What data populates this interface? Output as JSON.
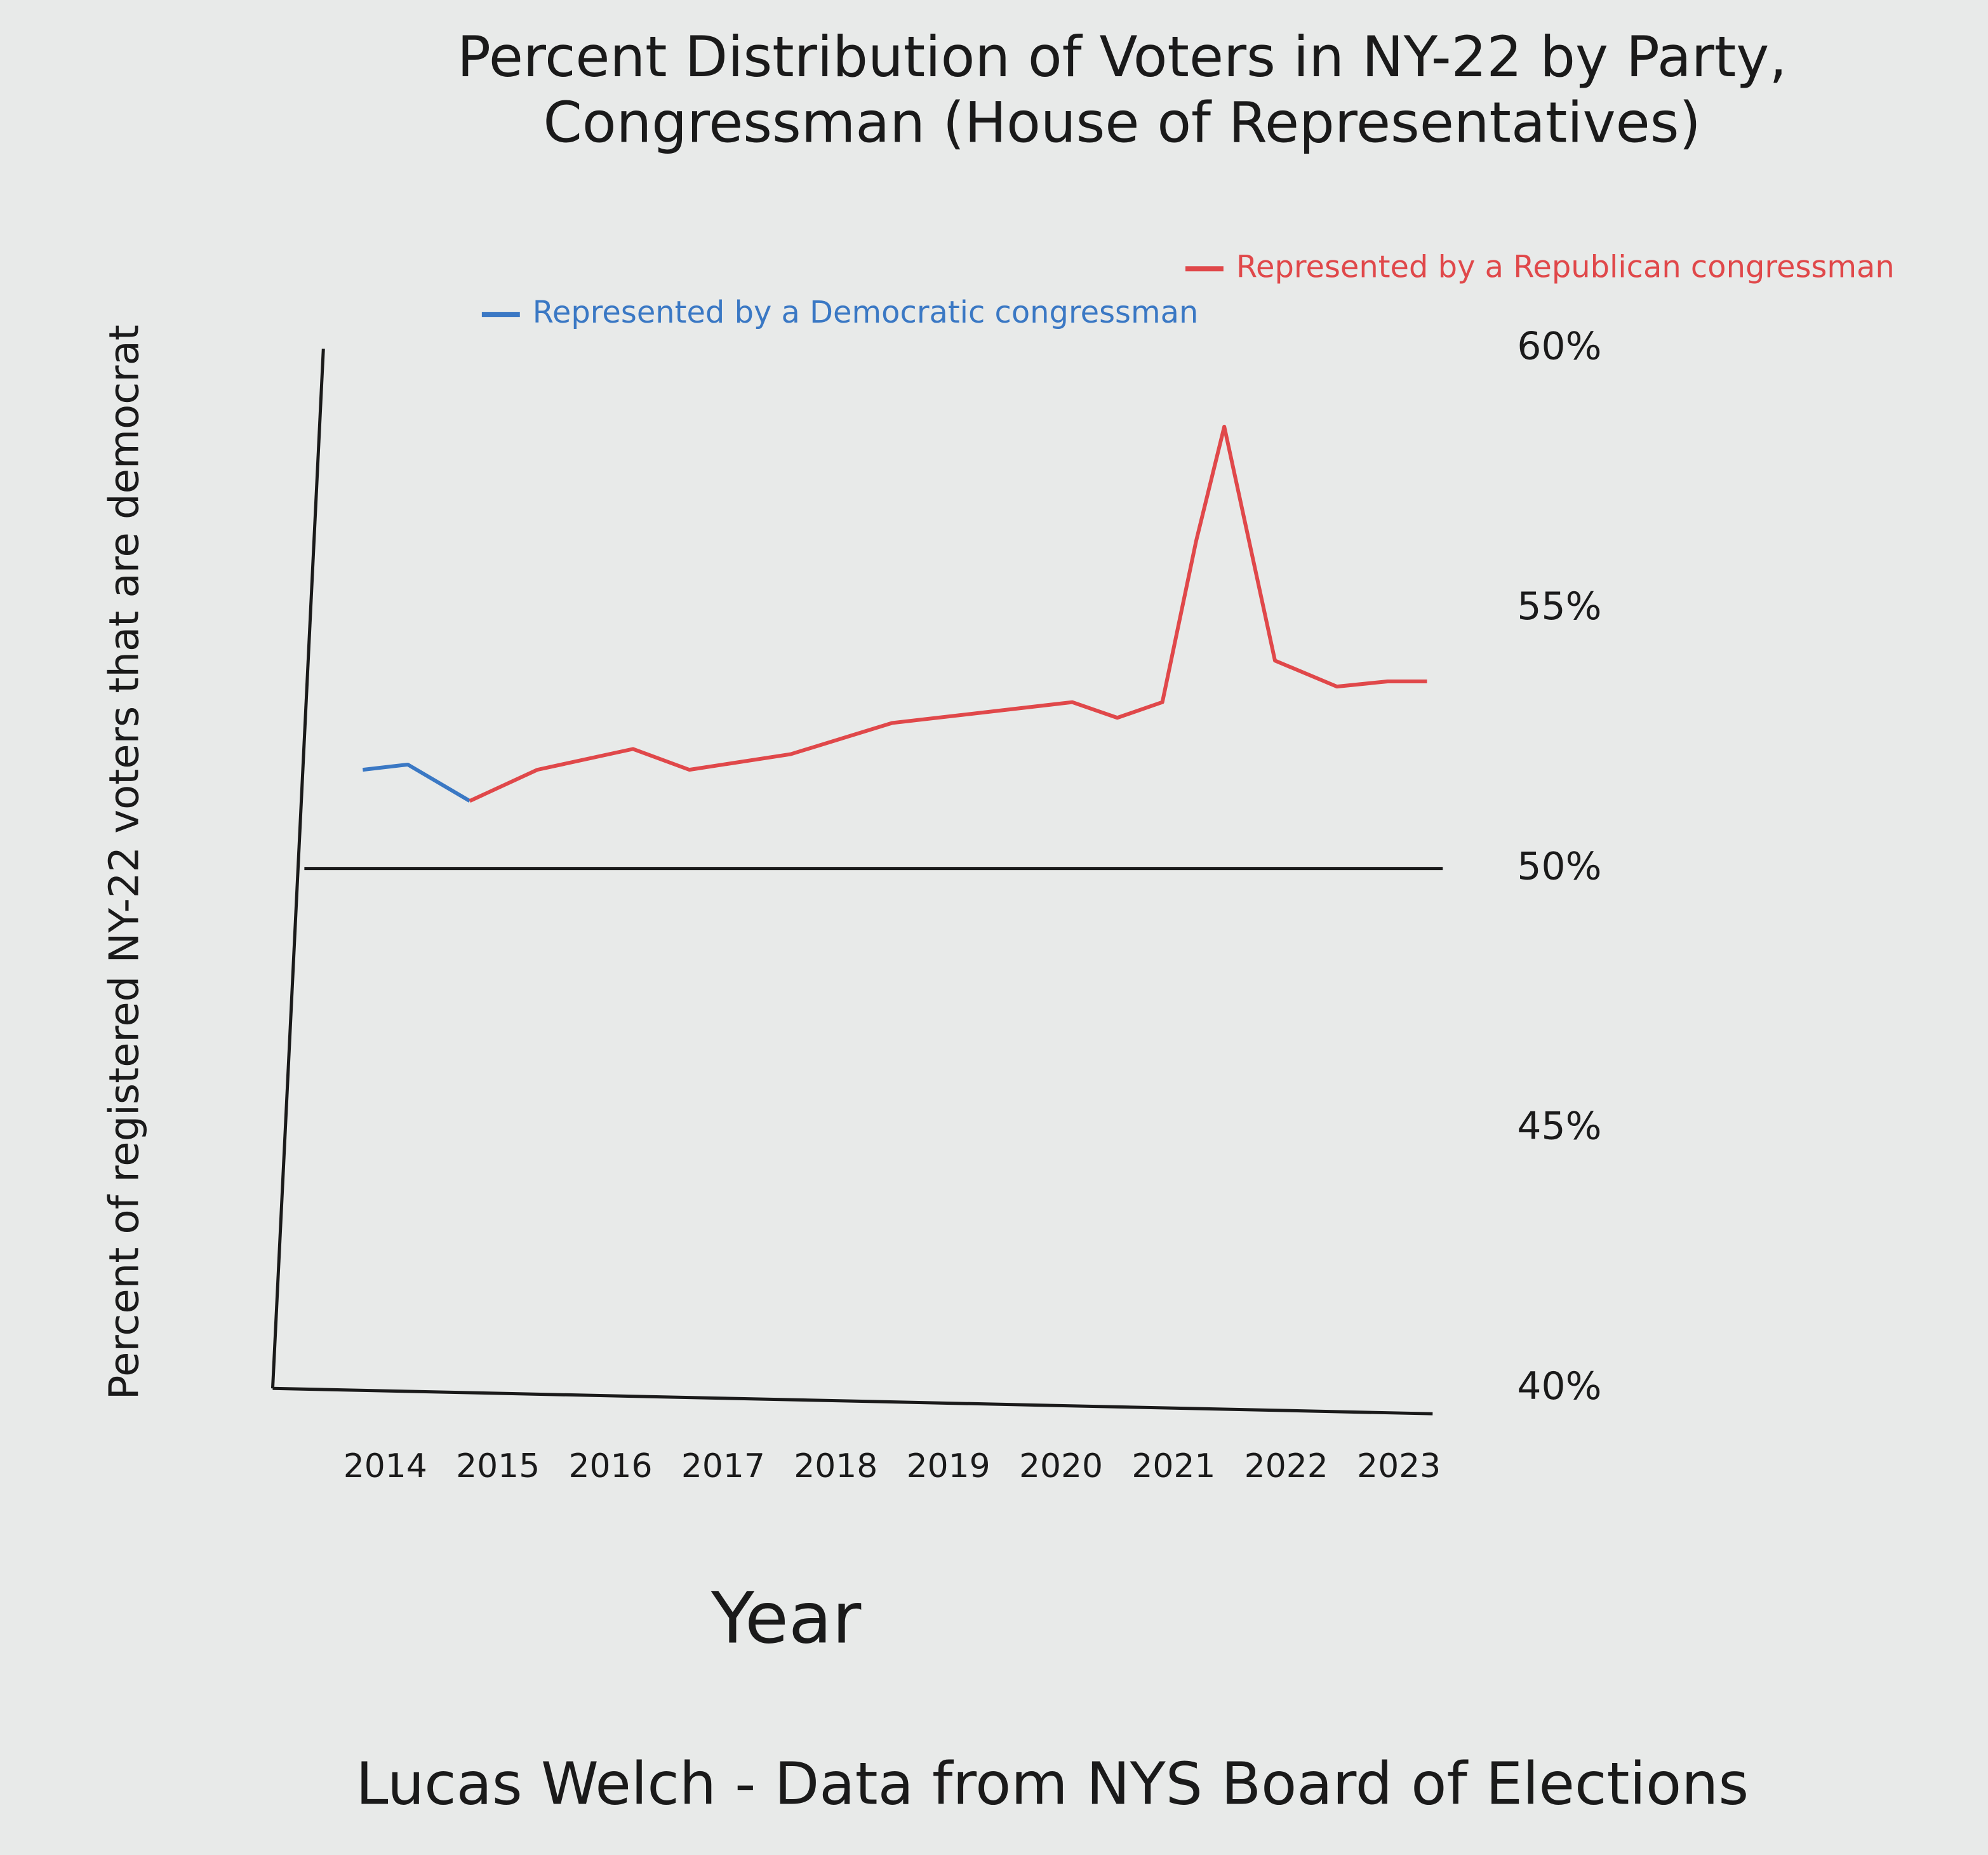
{
  "chart_data": {
    "type": "line",
    "title": "Percent Distribution of Voters in NY-22 by Party, Congressman (House of Representatives)",
    "x_label": "Year",
    "y_label": "Percent of registered NY-22 voters that are democrat",
    "footer": "Lucas Welch - Data from NYS Board of Elections",
    "xlim": [
      2013,
      2023.3
    ],
    "xticks": [
      2014,
      2015,
      2016,
      2017,
      2018,
      2019,
      2020,
      2021,
      2022,
      2023
    ],
    "ylim": [
      40,
      60
    ],
    "yticks": [
      {
        "value": 40,
        "label": "40%"
      },
      {
        "value": 45,
        "label": "45%"
      },
      {
        "value": 50,
        "label": "50%"
      },
      {
        "value": 55,
        "label": "55%"
      },
      {
        "value": 60,
        "label": "60%"
      }
    ],
    "reference_line": 50,
    "grid": false,
    "series": [
      {
        "name": "Represented by a Democratic congressman",
        "color": "#3a78c4",
        "x": [
          2013.8,
          2014.2,
          2014.75
        ],
        "values": [
          51.9,
          52.0,
          51.3
        ]
      },
      {
        "name": "Represented by a Republican congressman",
        "color": "#e0484a",
        "x": [
          2014.75,
          2015.35,
          2016.2,
          2016.7,
          2017.6,
          2018.5,
          2020.1,
          2020.5,
          2020.9,
          2021.2,
          2021.45,
          2021.9,
          2022.45,
          2022.9,
          2023.25
        ],
        "values": [
          51.3,
          51.9,
          52.3,
          51.9,
          52.2,
          52.8,
          53.2,
          52.9,
          53.2,
          56.3,
          58.5,
          54.0,
          53.5,
          53.6,
          53.6
        ]
      }
    ]
  }
}
